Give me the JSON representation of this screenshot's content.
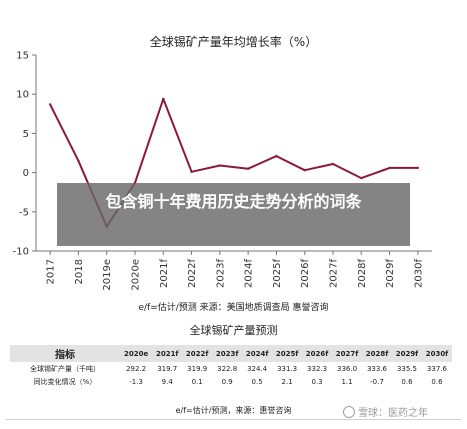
{
  "chart_data": [
    {
      "type": "line",
      "title": "全球锡矿产量年均增长率（%）",
      "x": [
        "2017",
        "2018",
        "2019e",
        "2020e",
        "2021f",
        "2022f",
        "2023f",
        "2024f",
        "2025f",
        "2026f",
        "2027f",
        "2028f",
        "2029f",
        "2030f"
      ],
      "series": [
        {
          "values": [
            8.7,
            1.5,
            -6.9,
            -1.3,
            9.4,
            0.1,
            0.9,
            0.5,
            2.1,
            0.3,
            1.1,
            -0.7,
            0.6,
            0.6
          ]
        }
      ],
      "ylim": [
        -10,
        15
      ],
      "yticks": [
        -10,
        -5,
        0,
        5,
        10,
        15
      ],
      "grid": false,
      "color": "#8b1a3a"
    },
    {
      "type": "table",
      "title": "全球锡矿产量预测",
      "columns": [
        "指标",
        "2020e",
        "2021f",
        "2022f",
        "2023f",
        "2024f",
        "2025f",
        "2026f",
        "2027f",
        "2028f",
        "2029f",
        "2030f"
      ],
      "rows": [
        [
          "全球锡矿产量（千吨）",
          "292.2",
          "319.7",
          "319.9",
          "322.8",
          "324.4",
          "331.3",
          "332.3",
          "336.0",
          "333.6",
          "335.5",
          "337.6"
        ],
        [
          "同比变化情况（%）",
          "-1.3",
          "9.4",
          "0.1",
          "0.9",
          "0.5",
          "2.1",
          "0.3",
          "1.1",
          "-0.7",
          "0.6",
          "0.6"
        ]
      ]
    }
  ],
  "source_note": "e/f=估计/预测 来源：美国地质调查局 惠誉咨询",
  "overlay_text": "包含铜十年费用历史走势分析的词条",
  "table_note": "e/f=估计/预测，来源：惠誉咨询",
  "watermark": "雪球：医药之年"
}
